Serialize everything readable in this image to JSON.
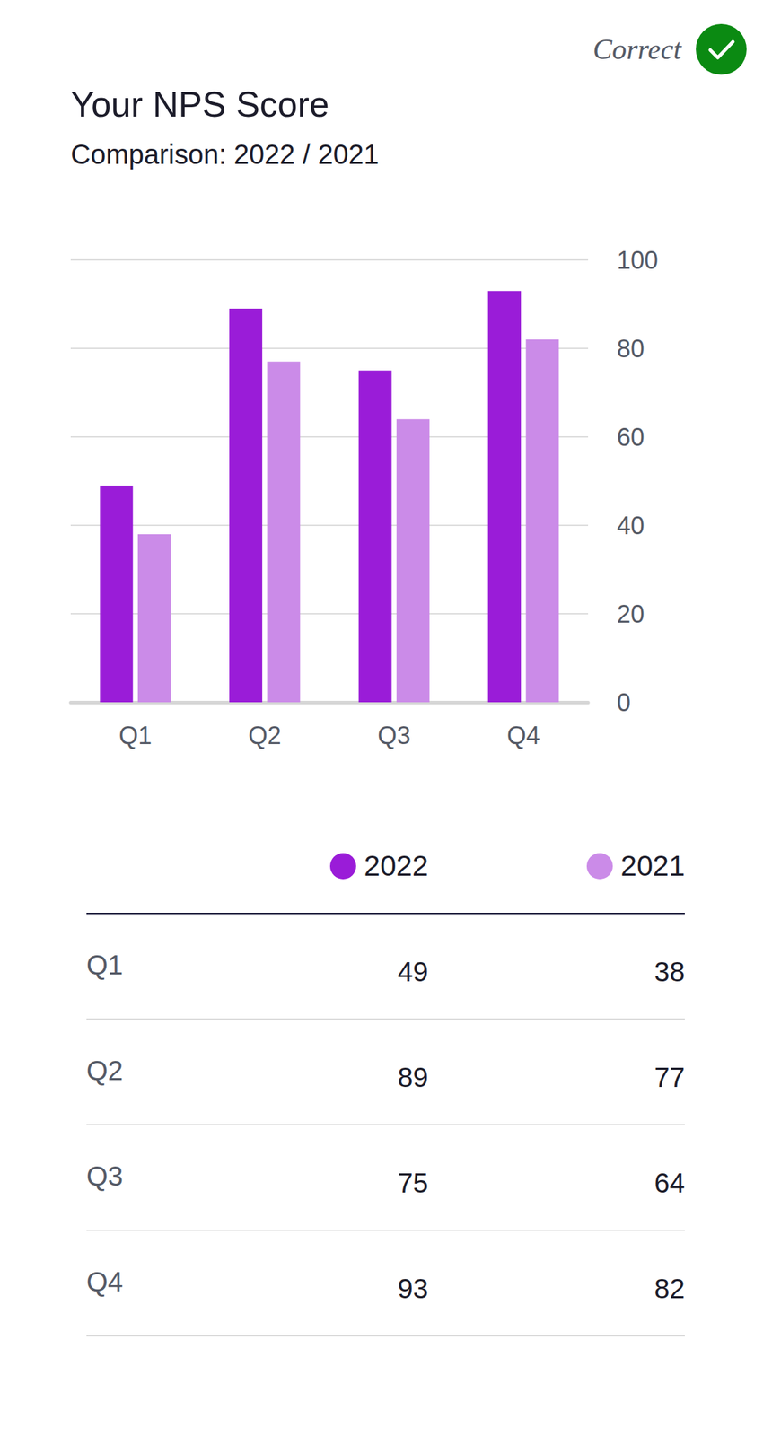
{
  "badge": "Correct",
  "chart_data": {
    "type": "bar",
    "title": "Your NPS Score",
    "subtitle": "Comparison: 2022 / 2021",
    "categories": [
      "Q1",
      "Q2",
      "Q3",
      "Q4"
    ],
    "series": [
      {
        "name": "2022",
        "color": "#9a1cd8",
        "values": [
          49,
          89,
          75,
          93
        ]
      },
      {
        "name": "2021",
        "color": "#cb8be8",
        "values": [
          38,
          77,
          64,
          82
        ]
      }
    ],
    "ylim": [
      0,
      100
    ],
    "yticks": [
      0,
      20,
      40,
      60,
      80,
      100
    ],
    "grid": true
  }
}
